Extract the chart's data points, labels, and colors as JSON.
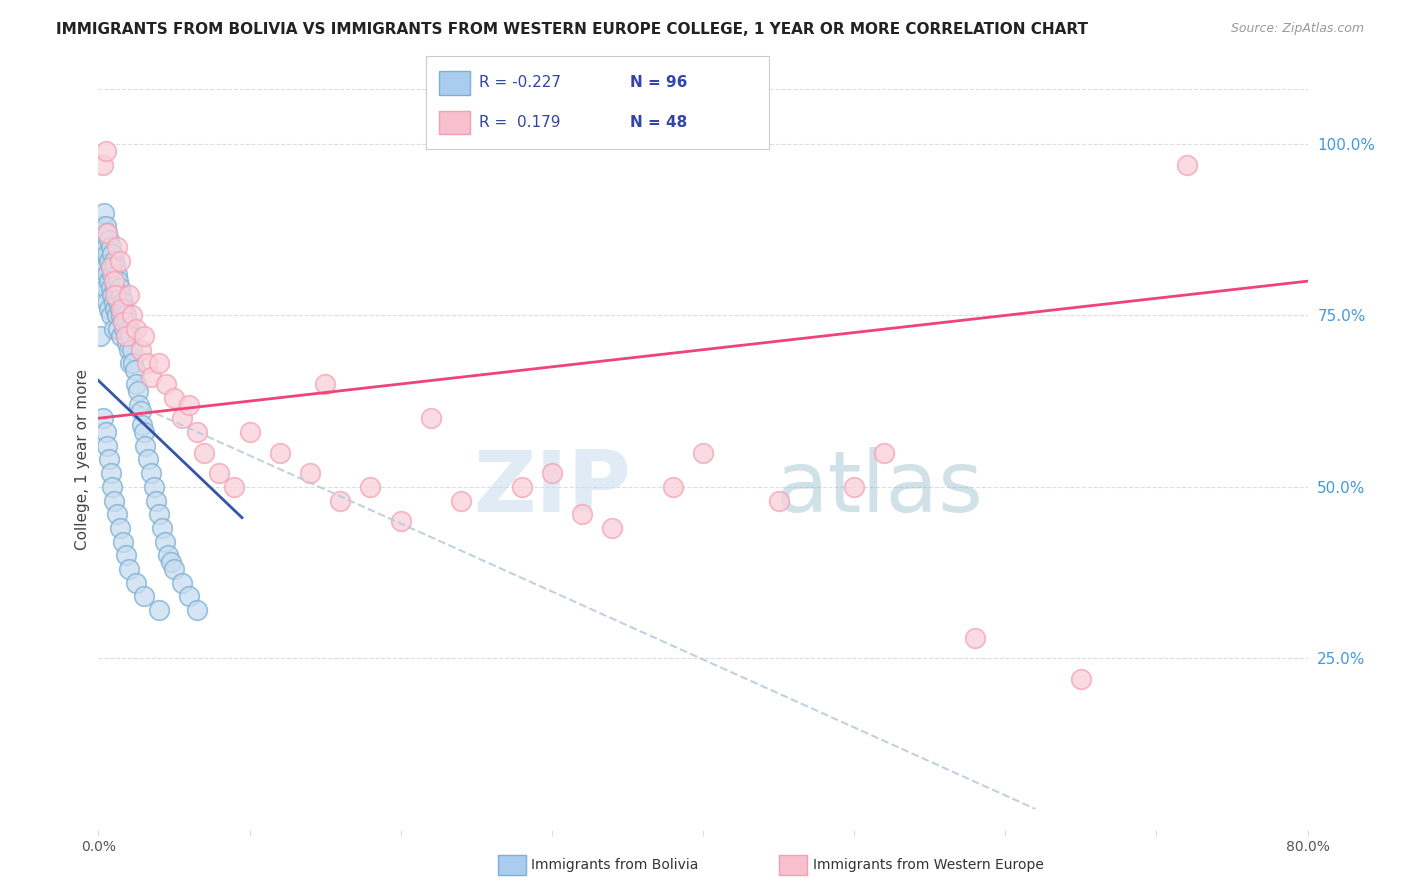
{
  "title": "IMMIGRANTS FROM BOLIVIA VS IMMIGRANTS FROM WESTERN EUROPE COLLEGE, 1 YEAR OR MORE CORRELATION CHART",
  "source": "Source: ZipAtlas.com",
  "ylabel": "College, 1 year or more",
  "x_min": 0.0,
  "x_max": 0.8,
  "y_min": 0.0,
  "y_max": 1.08,
  "x_tick_labels": [
    "0.0%",
    "",
    "",
    "",
    "",
    "",
    "",
    "",
    "80.0%"
  ],
  "x_tick_values": [
    0.0,
    0.1,
    0.2,
    0.3,
    0.4,
    0.5,
    0.6,
    0.7,
    0.8
  ],
  "y_tick_labels_right": [
    "25.0%",
    "50.0%",
    "75.0%",
    "100.0%"
  ],
  "y_tick_values_right": [
    0.25,
    0.5,
    0.75,
    1.0
  ],
  "bolivia_color": "#7BAFD4",
  "western_europe_color": "#F4A0B0",
  "bolivia_R": -0.227,
  "bolivia_N": 96,
  "western_europe_R": 0.179,
  "western_europe_N": 48,
  "bolivia_trend_color": "#3355AA",
  "western_europe_trend_color": "#EE4477",
  "dashed_trend_color": "#BBCCDD",
  "watermark_zip": "ZIP",
  "watermark_atlas": "atlas",
  "legend_label_bolivia": "Immigrants from Bolivia",
  "legend_label_western_europe": "Immigrants from Western Europe",
  "bolivia_x": [
    0.001,
    0.002,
    0.002,
    0.003,
    0.003,
    0.003,
    0.004,
    0.004,
    0.004,
    0.005,
    0.005,
    0.005,
    0.005,
    0.006,
    0.006,
    0.006,
    0.006,
    0.007,
    0.007,
    0.007,
    0.007,
    0.008,
    0.008,
    0.008,
    0.008,
    0.009,
    0.009,
    0.009,
    0.01,
    0.01,
    0.01,
    0.01,
    0.011,
    0.011,
    0.011,
    0.012,
    0.012,
    0.012,
    0.013,
    0.013,
    0.013,
    0.014,
    0.014,
    0.015,
    0.015,
    0.015,
    0.016,
    0.016,
    0.017,
    0.017,
    0.018,
    0.018,
    0.019,
    0.019,
    0.02,
    0.02,
    0.021,
    0.021,
    0.022,
    0.023,
    0.024,
    0.025,
    0.026,
    0.027,
    0.028,
    0.029,
    0.03,
    0.031,
    0.033,
    0.035,
    0.037,
    0.038,
    0.04,
    0.042,
    0.044,
    0.046,
    0.048,
    0.05,
    0.055,
    0.06,
    0.065,
    0.003,
    0.005,
    0.006,
    0.007,
    0.008,
    0.009,
    0.01,
    0.012,
    0.014,
    0.016,
    0.018,
    0.02,
    0.025,
    0.03,
    0.04
  ],
  "bolivia_y": [
    0.72,
    0.85,
    0.8,
    0.88,
    0.83,
    0.78,
    0.9,
    0.86,
    0.82,
    0.88,
    0.85,
    0.82,
    0.79,
    0.87,
    0.84,
    0.81,
    0.77,
    0.86,
    0.83,
    0.8,
    0.76,
    0.85,
    0.82,
    0.79,
    0.75,
    0.84,
    0.81,
    0.78,
    0.83,
    0.8,
    0.77,
    0.73,
    0.82,
    0.79,
    0.76,
    0.81,
    0.78,
    0.75,
    0.8,
    0.77,
    0.73,
    0.79,
    0.76,
    0.78,
    0.75,
    0.72,
    0.77,
    0.74,
    0.76,
    0.73,
    0.75,
    0.72,
    0.74,
    0.71,
    0.73,
    0.7,
    0.72,
    0.68,
    0.7,
    0.68,
    0.67,
    0.65,
    0.64,
    0.62,
    0.61,
    0.59,
    0.58,
    0.56,
    0.54,
    0.52,
    0.5,
    0.48,
    0.46,
    0.44,
    0.42,
    0.4,
    0.39,
    0.38,
    0.36,
    0.34,
    0.32,
    0.6,
    0.58,
    0.56,
    0.54,
    0.52,
    0.5,
    0.48,
    0.46,
    0.44,
    0.42,
    0.4,
    0.38,
    0.36,
    0.34,
    0.32
  ],
  "western_europe_x": [
    0.003,
    0.005,
    0.006,
    0.008,
    0.01,
    0.011,
    0.012,
    0.014,
    0.015,
    0.016,
    0.018,
    0.02,
    0.022,
    0.025,
    0.028,
    0.03,
    0.032,
    0.035,
    0.04,
    0.045,
    0.05,
    0.055,
    0.06,
    0.065,
    0.07,
    0.08,
    0.09,
    0.1,
    0.12,
    0.14,
    0.15,
    0.16,
    0.18,
    0.2,
    0.22,
    0.24,
    0.28,
    0.3,
    0.32,
    0.34,
    0.38,
    0.4,
    0.45,
    0.5,
    0.52,
    0.58,
    0.65,
    0.72
  ],
  "western_europe_y": [
    0.97,
    0.99,
    0.87,
    0.82,
    0.8,
    0.78,
    0.85,
    0.83,
    0.76,
    0.74,
    0.72,
    0.78,
    0.75,
    0.73,
    0.7,
    0.72,
    0.68,
    0.66,
    0.68,
    0.65,
    0.63,
    0.6,
    0.62,
    0.58,
    0.55,
    0.52,
    0.5,
    0.58,
    0.55,
    0.52,
    0.65,
    0.48,
    0.5,
    0.45,
    0.6,
    0.48,
    0.5,
    0.52,
    0.46,
    0.44,
    0.5,
    0.55,
    0.48,
    0.5,
    0.55,
    0.28,
    0.22,
    0.97
  ],
  "bolivia_trend_x": [
    0.0,
    0.095
  ],
  "bolivia_trend_y": [
    0.655,
    0.455
  ],
  "dashed_trend_x": [
    0.025,
    0.62
  ],
  "dashed_trend_y": [
    0.62,
    0.03
  ],
  "western_trend_x": [
    0.0,
    0.8
  ],
  "western_trend_y": [
    0.6,
    0.8
  ]
}
